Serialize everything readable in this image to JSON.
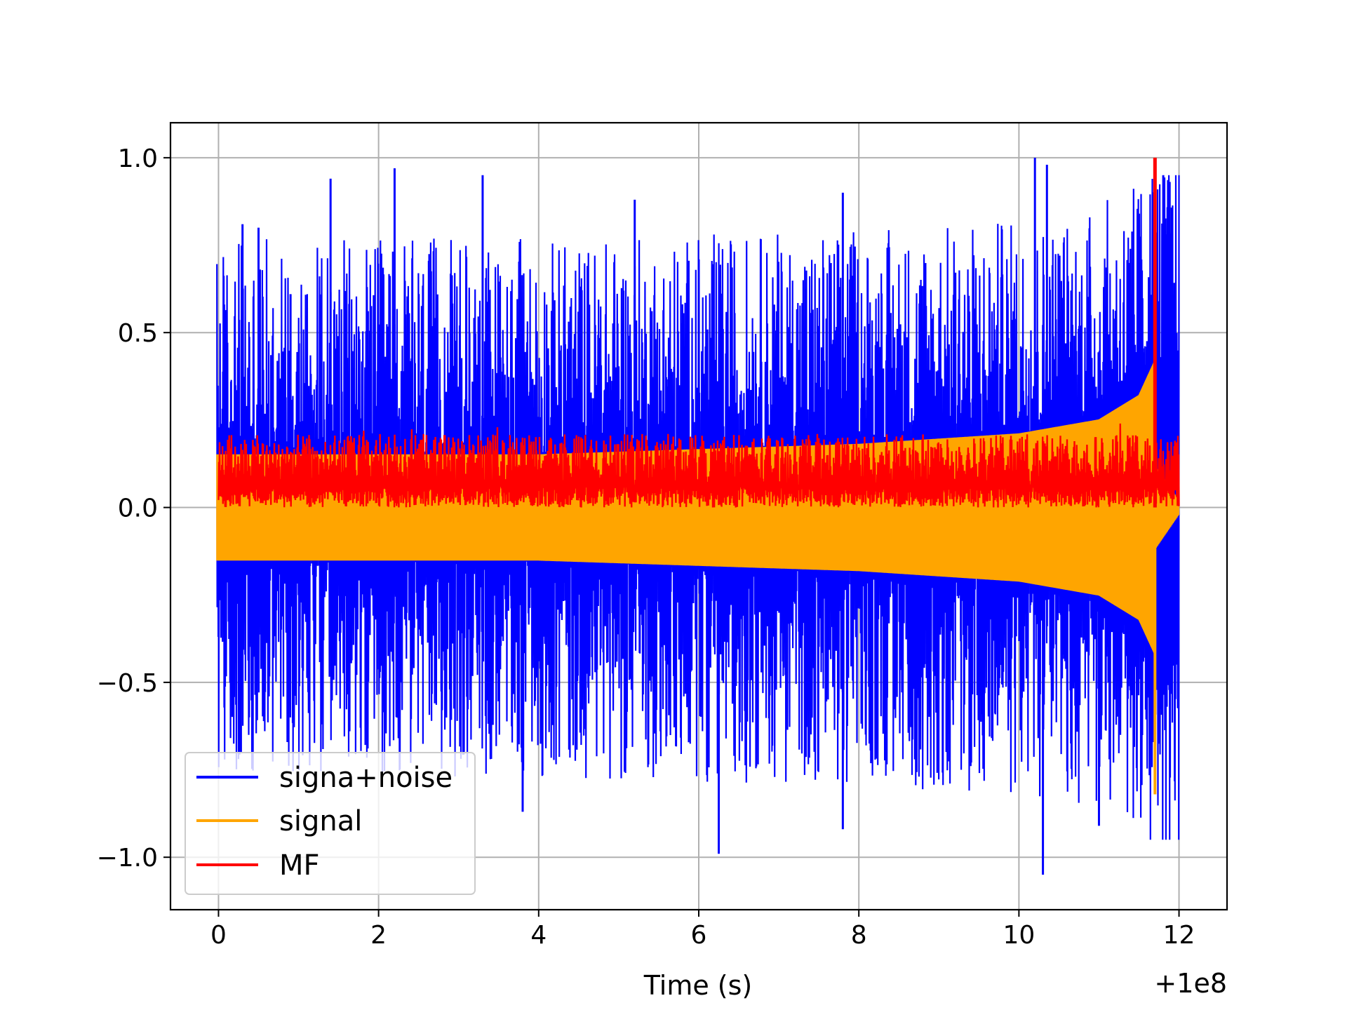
{
  "chart_data": {
    "type": "line",
    "title": "",
    "xlabel": "Time (s)",
    "ylabel": "",
    "x_offset_label": "+1e8",
    "xlim": [
      -0.6,
      12.6
    ],
    "ylim": [
      -1.15,
      1.1
    ],
    "x_ticks": [
      0,
      2,
      4,
      6,
      8,
      10,
      12
    ],
    "x_tick_labels": [
      "0",
      "2",
      "4",
      "6",
      "8",
      "10",
      "12"
    ],
    "y_ticks": [
      1.0,
      0.5,
      0.0,
      -0.5,
      -1.0
    ],
    "y_tick_labels": [
      "1.0",
      "0.5",
      "0.0",
      "−0.5",
      "−1.0"
    ],
    "grid": true,
    "legend_position": "lower-left",
    "colors": {
      "signal_noise": "#0000ff",
      "signal": "#ffa500",
      "mf": "#ff0000"
    },
    "series": [
      {
        "name": "signa+noise",
        "color": "#0000ff",
        "x_range": [
          -0.02,
          12.0
        ],
        "peak_points": [
          {
            "x": 0.3,
            "y": 0.81
          },
          {
            "x": 0.5,
            "y": 0.8
          },
          {
            "x": 0.9,
            "y": 0.61
          },
          {
            "x": 1.4,
            "y": 0.94
          },
          {
            "x": 2.2,
            "y": 0.97
          },
          {
            "x": 3.3,
            "y": 0.95
          },
          {
            "x": 5.2,
            "y": 0.88
          },
          {
            "x": 7.8,
            "y": 0.9
          },
          {
            "x": 10.2,
            "y": 1.0
          },
          {
            "x": 10.35,
            "y": 0.98
          },
          {
            "x": 11.5,
            "y": 0.84
          },
          {
            "x": 3.8,
            "y": -0.87
          },
          {
            "x": 6.25,
            "y": -0.99
          },
          {
            "x": 7.8,
            "y": -0.92
          },
          {
            "x": 10.3,
            "y": -1.05
          },
          {
            "x": 11.0,
            "y": -0.91
          }
        ]
      },
      {
        "name": "signal",
        "color": "#ffa500",
        "envelope_points": [
          {
            "x": 0.0,
            "y": 0.15
          },
          {
            "x": 4.0,
            "y": 0.15
          },
          {
            "x": 8.0,
            "y": 0.18
          },
          {
            "x": 10.0,
            "y": 0.21
          },
          {
            "x": 11.0,
            "y": 0.25
          },
          {
            "x": 11.5,
            "y": 0.32
          },
          {
            "x": 11.7,
            "y": 0.42
          }
        ],
        "peak_points": [
          {
            "x": 11.7,
            "y": 1.0
          },
          {
            "x": 11.7,
            "y": -0.82
          }
        ]
      },
      {
        "name": "MF",
        "color": "#ff0000",
        "band": [
          0.0,
          0.21
        ],
        "peak_points": [
          {
            "x": 11.7,
            "y": 1.0
          }
        ]
      }
    ]
  }
}
